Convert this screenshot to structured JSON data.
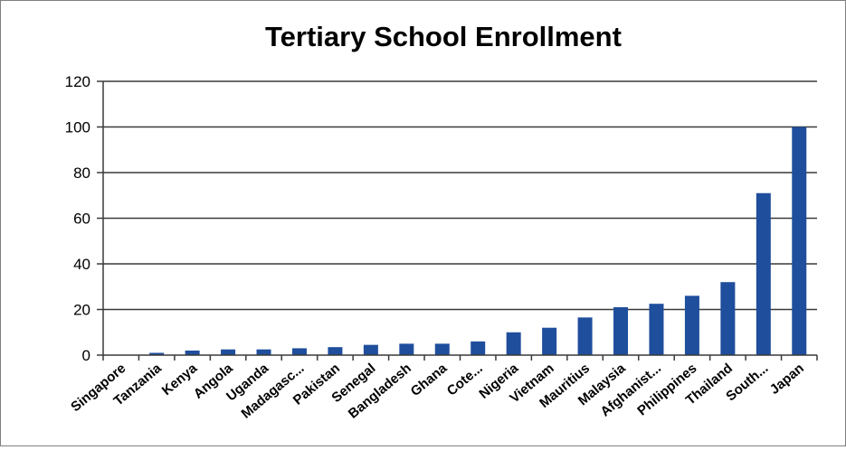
{
  "chart_data": {
    "type": "bar",
    "title": "Tertiary School Enrollment",
    "xlabel": "",
    "ylabel": "",
    "ylim": [
      0,
      120
    ],
    "yticks": [
      0,
      20,
      40,
      60,
      80,
      100,
      120
    ],
    "grid": true,
    "legend": "none",
    "bar_color": "#1f4e9c",
    "gridline_color": "#3a3a3a",
    "categories": [
      "Singapore",
      "Tanzania",
      "Kenya",
      "Angola",
      "Uganda",
      "Madagasc...",
      "Pakistan",
      "Senegal",
      "Bangladesh",
      "Ghana",
      "Cote...",
      "Nigeria",
      "Vietnam",
      "Mauritius",
      "Malaysia",
      "Afghanist...",
      "Philippines",
      "Thailand",
      "South...",
      "Japan"
    ],
    "values": [
      0,
      1,
      2,
      2.5,
      2.5,
      3,
      3.5,
      4.5,
      5,
      5,
      6,
      10,
      12,
      16.5,
      21,
      22.5,
      26,
      32,
      71,
      100
    ]
  }
}
